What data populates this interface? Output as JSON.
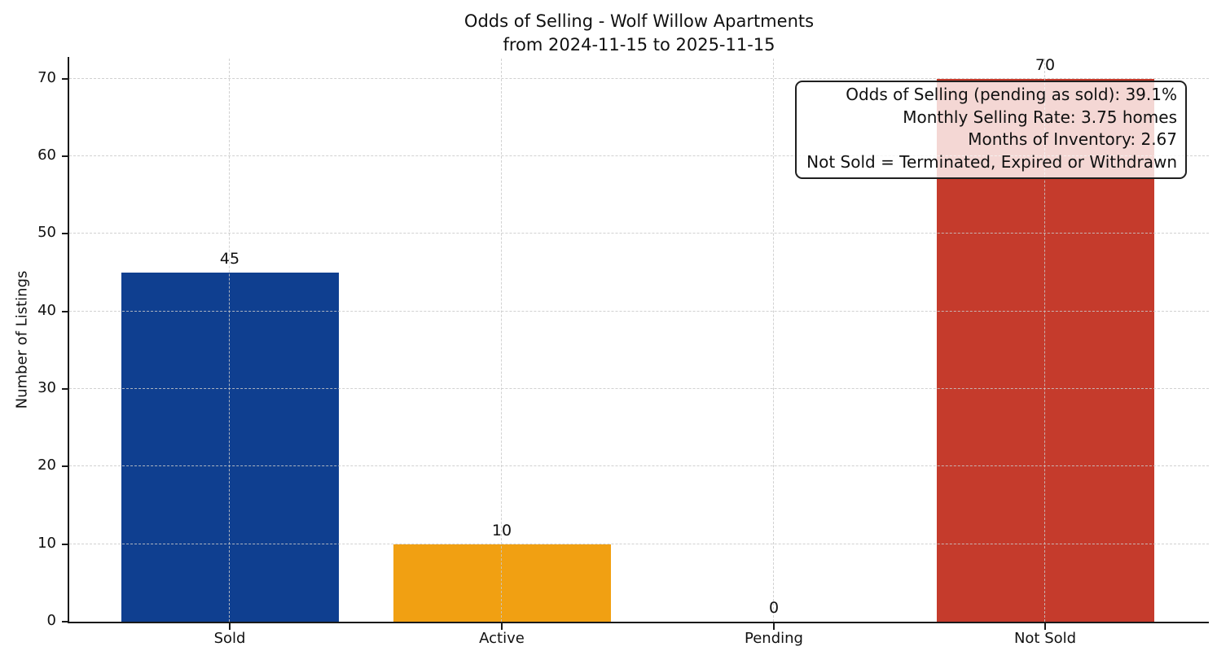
{
  "chart_data": {
    "type": "bar",
    "title": "Odds of Selling - Wolf Willow Apartments",
    "subtitle": "from 2024-11-15 to 2025-11-15",
    "categories": [
      "Sold",
      "Active",
      "Pending",
      "Not Sold"
    ],
    "values": [
      45,
      10,
      0,
      70
    ],
    "bar_colors": [
      "#0f3f90",
      "#f1a012",
      "#999999",
      "#c53b2c"
    ],
    "xlabel": "",
    "ylabel": "Number of Listings",
    "ylim": [
      0,
      72.6
    ],
    "yticks": [
      0,
      10,
      20,
      30,
      40,
      50,
      60,
      70
    ],
    "grid": "dashed light-gray horizontal and vertical gridlines drawn above bars",
    "legend": "none",
    "annotation": [
      "Odds of Selling (pending as sold): 39.1%",
      "Monthly Selling Rate: 3.75 homes",
      "Months of Inventory: 2.67",
      "Not Sold = Terminated, Expired or Withdrawn"
    ],
    "axis_color": "#1a1a1a",
    "background_color": "#ffffff"
  }
}
